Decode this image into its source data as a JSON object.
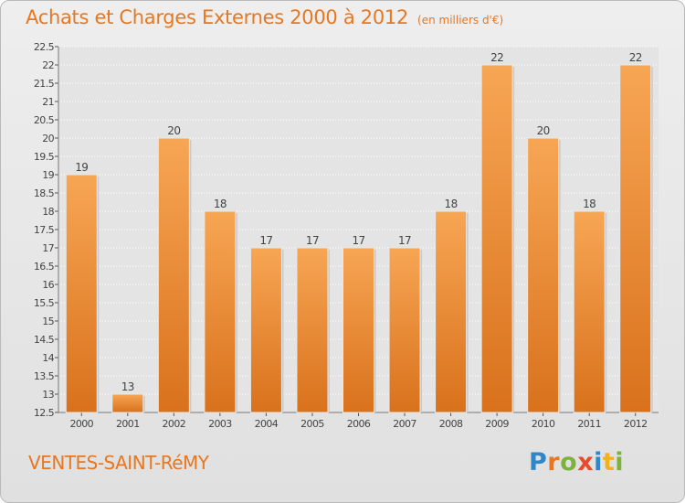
{
  "header": {
    "title": "Achats et Charges Externes 2000 à 2012",
    "unit": "(en milliers d'€)"
  },
  "footer": {
    "town": "VENTES-SAINT-RéMY",
    "logo": "Proxiti"
  },
  "colors": {
    "bar_light": "#f7a654",
    "bar_dark": "#d9711c",
    "title": "#e8771f",
    "grid": "#ffffff"
  },
  "chart_data": {
    "type": "bar",
    "title": "Achats et Charges Externes 2000 à 2012",
    "subtitle": "(en milliers d'€)",
    "xlabel": "",
    "ylabel": "",
    "categories": [
      "2000",
      "2001",
      "2002",
      "2003",
      "2004",
      "2005",
      "2006",
      "2007",
      "2008",
      "2009",
      "2010",
      "2011",
      "2012"
    ],
    "values": [
      19,
      13,
      20,
      18,
      17,
      17,
      17,
      17,
      18,
      22,
      20,
      18,
      22
    ],
    "ylim": [
      12.5,
      22.5
    ],
    "yticks": [
      "12.5",
      "13",
      "13.5",
      "14",
      "14.5",
      "15",
      "15.5",
      "16",
      "16.5",
      "17",
      "17.5",
      "18",
      "18.5",
      "19",
      "19.5",
      "20",
      "20.5",
      "21",
      "21.5",
      "22",
      "22.5"
    ],
    "grid": true,
    "data_labels": true,
    "legend": "none"
  }
}
